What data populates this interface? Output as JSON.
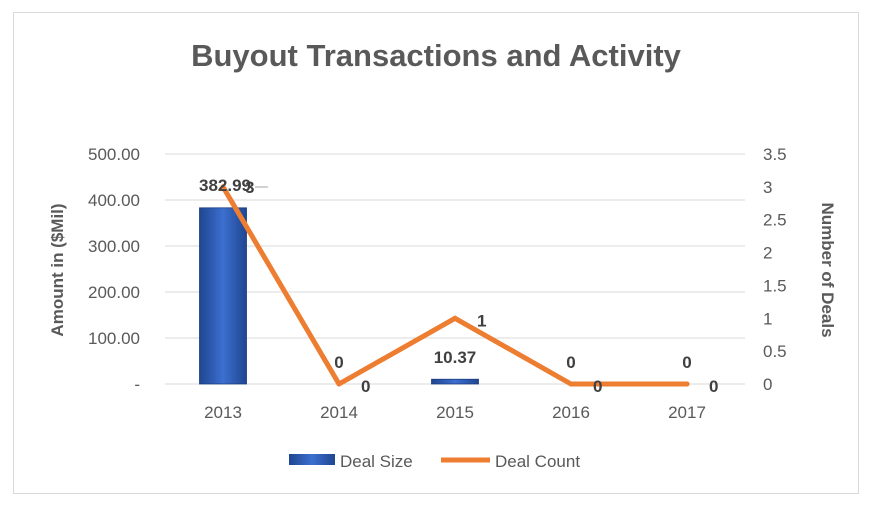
{
  "chart_data": {
    "type": "bar",
    "title": "Buyout Transactions and Activity",
    "categories": [
      "2013",
      "2014",
      "2015",
      "2016",
      "2017"
    ],
    "series": [
      {
        "name": "Deal Size",
        "type": "bar",
        "axis": "left",
        "values": [
          382.99,
          0,
          10.37,
          0,
          0
        ],
        "labels": [
          "382.99",
          "0",
          "10.37",
          "0",
          "0"
        ],
        "color": "#2e5aa8"
      },
      {
        "name": "Deal Count",
        "type": "line",
        "axis": "right",
        "values": [
          3,
          0,
          1,
          0,
          0
        ],
        "labels": [
          "3",
          "0",
          "1",
          "0",
          "0"
        ],
        "color": "#ed7d31"
      }
    ],
    "ylabel": "Amount in ($Mil)",
    "ylim": [
      0,
      500
    ],
    "yticks": [
      "-",
      "100.00",
      "200.00",
      "300.00",
      "400.00",
      "500.00"
    ],
    "y2label": "Number of Deals",
    "y2lim": [
      0,
      3.5
    ],
    "y2ticks": [
      "0",
      "0.5",
      "1",
      "1.5",
      "2",
      "2.5",
      "3",
      "3.5"
    ],
    "grid": true,
    "legend": "bottom"
  }
}
